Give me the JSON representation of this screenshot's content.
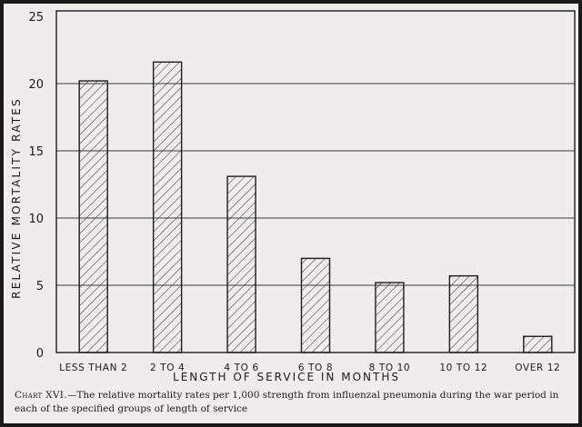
{
  "chart_data": {
    "type": "bar",
    "categories": [
      "LESS THAN 2",
      "2 TO 4",
      "4 TO 6",
      "6 TO 8",
      "8 TO 10",
      "10 TO 12",
      "OVER 12"
    ],
    "values": [
      20.2,
      21.6,
      13.1,
      7.0,
      5.2,
      5.7,
      1.2
    ],
    "xlabel": "LENGTH OF SERVICE IN MONTHS",
    "ylabel": "RELATIVE MORTALITY RATES",
    "ylim": [
      0,
      25
    ],
    "yticks": [
      0,
      5,
      10,
      15,
      20,
      25
    ],
    "grid": true,
    "bar_fill": "hatched",
    "colors": {
      "ink": "#1c1c1c",
      "paper": "#eeede9",
      "border": "#1a1a1a"
    }
  },
  "caption": {
    "lead": "Chart XVI.",
    "text": "—The relative mortality rates per 1,000 strength from influenzal pneumonia during the war period in each of the specified groups of length of service"
  }
}
